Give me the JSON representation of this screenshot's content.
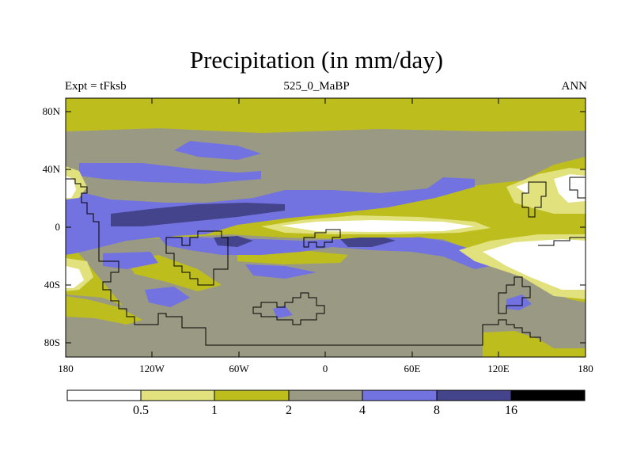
{
  "title": "Precipitation (in mm/day)",
  "subtitle_left": "Expt = tFksb",
  "subtitle_center": "525_0_MaBP",
  "subtitle_right": "ANN",
  "y_ticks": [
    "80N",
    "40N",
    "0",
    "40S",
    "80S"
  ],
  "x_ticks": [
    "180",
    "120W",
    "60W",
    "0",
    "60E",
    "120E",
    "180"
  ],
  "colorbar": {
    "levels": [
      "0.5",
      "1",
      "2",
      "4",
      "8",
      "16"
    ],
    "colors": [
      "#ffffff",
      "#e1e17d",
      "#bdbd1e",
      "#9a9a84",
      "#7272e0",
      "#44448c",
      "#000000"
    ]
  },
  "legend_units": "mm/day"
}
